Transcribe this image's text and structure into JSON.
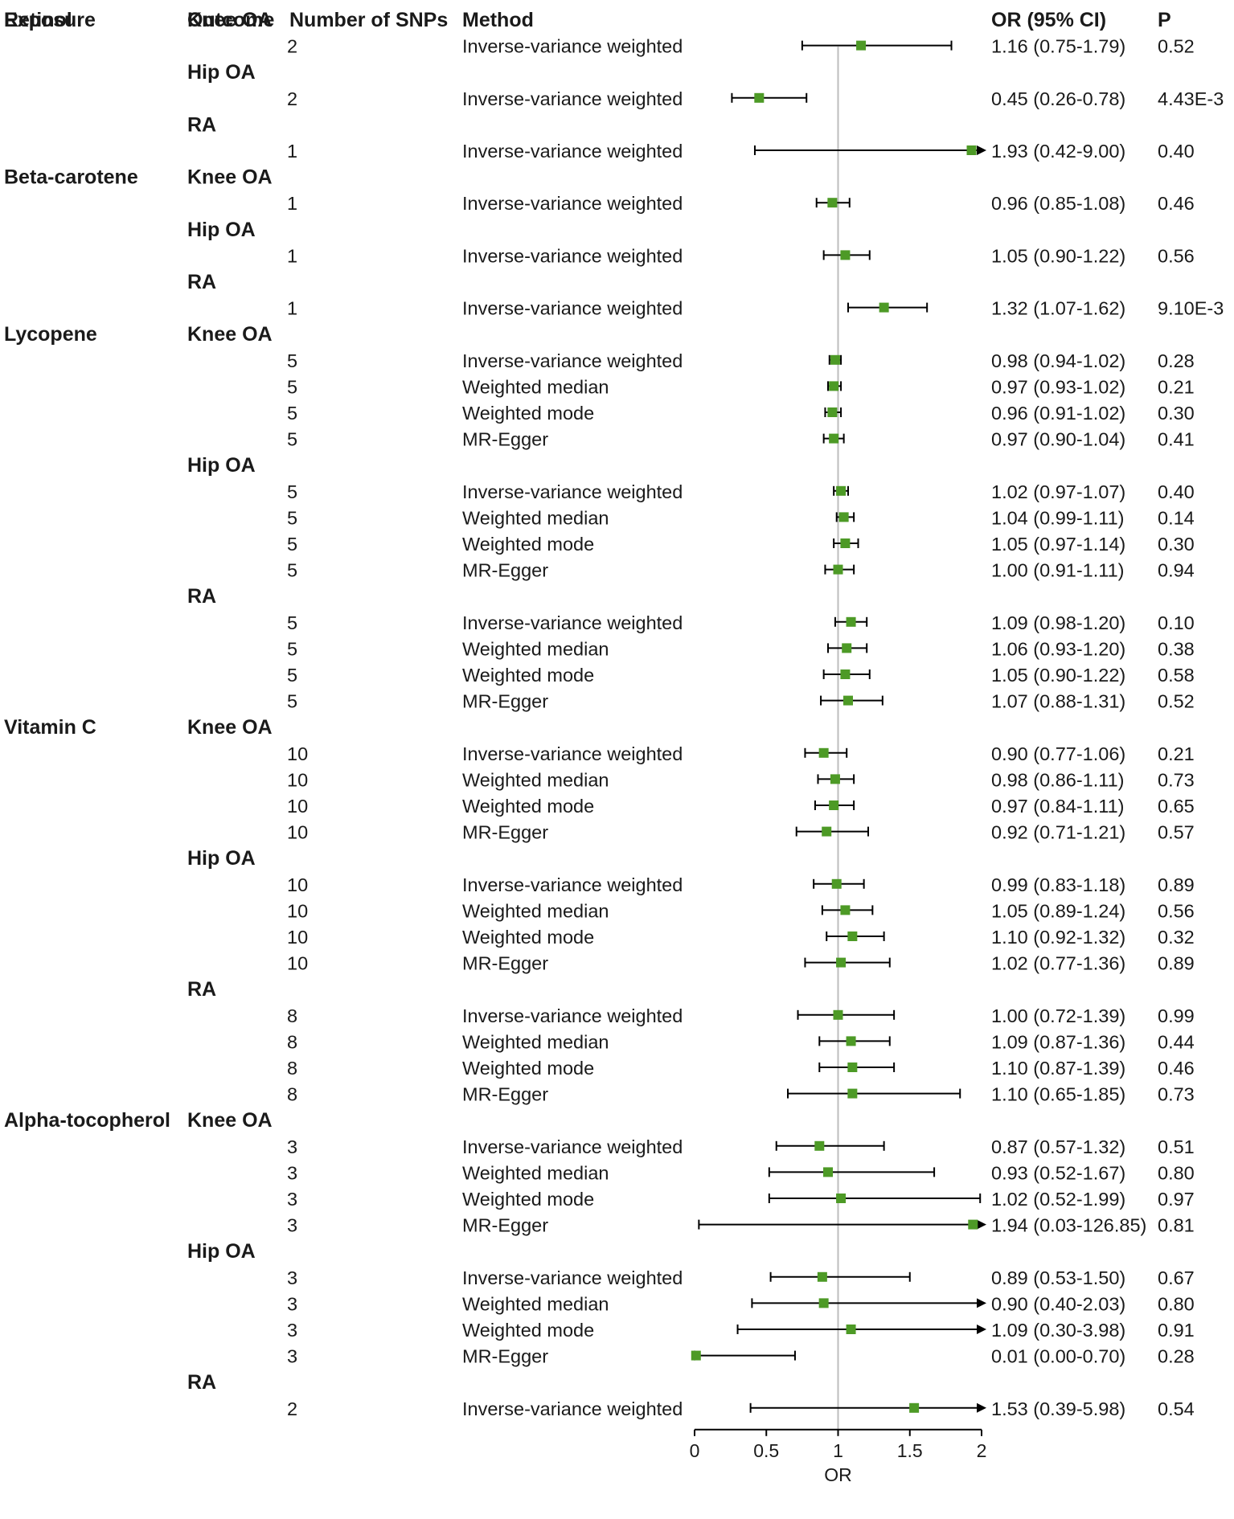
{
  "chart_data": {
    "type": "forest",
    "headers": {
      "exposure": "Exposure",
      "outcome": "Outcome",
      "nsnps": "Number of SNPs",
      "method": "Method",
      "or_ci": "OR (95% CI)",
      "p": "P"
    },
    "xlabel": "OR",
    "xlim": [
      0,
      2
    ],
    "xticks": [
      0,
      0.5,
      1,
      1.5,
      2
    ],
    "xtick_labels": [
      "0",
      "0.5",
      "1",
      "1.5",
      "2"
    ],
    "reference_line": 1,
    "colors": {
      "marker": "#4d9a26",
      "reference": "#bdbdbd",
      "line": "#000000"
    },
    "exposures": [
      {
        "name": "Retinol",
        "outcomes": [
          {
            "name": "Knee OA",
            "rows": [
              {
                "nsnps": "2",
                "method": "Inverse-variance weighted",
                "or": 1.16,
                "lo": 0.75,
                "hi": 1.79,
                "or_text": "1.16 (0.75-1.79)",
                "p": "0.52"
              }
            ]
          },
          {
            "name": "Hip OA",
            "rows": [
              {
                "nsnps": "2",
                "method": "Inverse-variance weighted",
                "or": 0.45,
                "lo": 0.26,
                "hi": 0.78,
                "or_text": "0.45 (0.26-0.78)",
                "p": "4.43E-3"
              }
            ]
          },
          {
            "name": "RA",
            "rows": [
              {
                "nsnps": "1",
                "method": "Inverse-variance weighted",
                "or": 1.93,
                "lo": 0.42,
                "hi": 9.0,
                "or_text": "1.93 (0.42-9.00)",
                "p": "0.40"
              }
            ]
          }
        ]
      },
      {
        "name": "Beta-carotene",
        "outcomes": [
          {
            "name": "Knee OA",
            "rows": [
              {
                "nsnps": "1",
                "method": "Inverse-variance weighted",
                "or": 0.96,
                "lo": 0.85,
                "hi": 1.08,
                "or_text": "0.96 (0.85-1.08)",
                "p": "0.46"
              }
            ]
          },
          {
            "name": "Hip OA",
            "rows": [
              {
                "nsnps": "1",
                "method": "Inverse-variance weighted",
                "or": 1.05,
                "lo": 0.9,
                "hi": 1.22,
                "or_text": "1.05 (0.90-1.22)",
                "p": "0.56"
              }
            ]
          },
          {
            "name": "RA",
            "rows": [
              {
                "nsnps": "1",
                "method": "Inverse-variance weighted",
                "or": 1.32,
                "lo": 1.07,
                "hi": 1.62,
                "or_text": "1.32 (1.07-1.62)",
                "p": "9.10E-3"
              }
            ]
          }
        ]
      },
      {
        "name": "Lycopene",
        "outcomes": [
          {
            "name": "Knee OA",
            "rows": [
              {
                "nsnps": "5",
                "method": "Inverse-variance weighted",
                "or": 0.98,
                "lo": 0.94,
                "hi": 1.02,
                "or_text": "0.98 (0.94-1.02)",
                "p": "0.28"
              },
              {
                "nsnps": "5",
                "method": "Weighted median",
                "or": 0.97,
                "lo": 0.93,
                "hi": 1.02,
                "or_text": "0.97 (0.93-1.02)",
                "p": "0.21"
              },
              {
                "nsnps": "5",
                "method": "Weighted mode",
                "or": 0.96,
                "lo": 0.91,
                "hi": 1.02,
                "or_text": "0.96 (0.91-1.02)",
                "p": "0.30"
              },
              {
                "nsnps": "5",
                "method": "MR-Egger",
                "or": 0.97,
                "lo": 0.9,
                "hi": 1.04,
                "or_text": "0.97 (0.90-1.04)",
                "p": "0.41"
              }
            ]
          },
          {
            "name": "Hip OA",
            "rows": [
              {
                "nsnps": "5",
                "method": "Inverse-variance weighted",
                "or": 1.02,
                "lo": 0.97,
                "hi": 1.07,
                "or_text": "1.02 (0.97-1.07)",
                "p": "0.40"
              },
              {
                "nsnps": "5",
                "method": "Weighted median",
                "or": 1.04,
                "lo": 0.99,
                "hi": 1.11,
                "or_text": "1.04 (0.99-1.11)",
                "p": "0.14"
              },
              {
                "nsnps": "5",
                "method": "Weighted mode",
                "or": 1.05,
                "lo": 0.97,
                "hi": 1.14,
                "or_text": "1.05 (0.97-1.14)",
                "p": "0.30"
              },
              {
                "nsnps": "5",
                "method": "MR-Egger",
                "or": 1.0,
                "lo": 0.91,
                "hi": 1.11,
                "or_text": "1.00 (0.91-1.11)",
                "p": "0.94"
              }
            ]
          },
          {
            "name": "RA",
            "rows": [
              {
                "nsnps": "5",
                "method": "Inverse-variance weighted",
                "or": 1.09,
                "lo": 0.98,
                "hi": 1.2,
                "or_text": "1.09 (0.98-1.20)",
                "p": "0.10"
              },
              {
                "nsnps": "5",
                "method": "Weighted median",
                "or": 1.06,
                "lo": 0.93,
                "hi": 1.2,
                "or_text": "1.06 (0.93-1.20)",
                "p": "0.38"
              },
              {
                "nsnps": "5",
                "method": "Weighted mode",
                "or": 1.05,
                "lo": 0.9,
                "hi": 1.22,
                "or_text": "1.05 (0.90-1.22)",
                "p": "0.58"
              },
              {
                "nsnps": "5",
                "method": "MR-Egger",
                "or": 1.07,
                "lo": 0.88,
                "hi": 1.31,
                "or_text": "1.07 (0.88-1.31)",
                "p": "0.52"
              }
            ]
          }
        ]
      },
      {
        "name": "Vitamin C",
        "outcomes": [
          {
            "name": "Knee OA",
            "rows": [
              {
                "nsnps": "10",
                "method": "Inverse-variance weighted",
                "or": 0.9,
                "lo": 0.77,
                "hi": 1.06,
                "or_text": "0.90 (0.77-1.06)",
                "p": "0.21"
              },
              {
                "nsnps": "10",
                "method": "Weighted median",
                "or": 0.98,
                "lo": 0.86,
                "hi": 1.11,
                "or_text": "0.98 (0.86-1.11)",
                "p": "0.73"
              },
              {
                "nsnps": "10",
                "method": "Weighted mode",
                "or": 0.97,
                "lo": 0.84,
                "hi": 1.11,
                "or_text": "0.97 (0.84-1.11)",
                "p": "0.65"
              },
              {
                "nsnps": "10",
                "method": "MR-Egger",
                "or": 0.92,
                "lo": 0.71,
                "hi": 1.21,
                "or_text": "0.92 (0.71-1.21)",
                "p": "0.57"
              }
            ]
          },
          {
            "name": "Hip OA",
            "rows": [
              {
                "nsnps": "10",
                "method": "Inverse-variance weighted",
                "or": 0.99,
                "lo": 0.83,
                "hi": 1.18,
                "or_text": "0.99 (0.83-1.18)",
                "p": "0.89"
              },
              {
                "nsnps": "10",
                "method": "Weighted median",
                "or": 1.05,
                "lo": 0.89,
                "hi": 1.24,
                "or_text": "1.05 (0.89-1.24)",
                "p": "0.56"
              },
              {
                "nsnps": "10",
                "method": "Weighted mode",
                "or": 1.1,
                "lo": 0.92,
                "hi": 1.32,
                "or_text": "1.10 (0.92-1.32)",
                "p": "0.32"
              },
              {
                "nsnps": "10",
                "method": "MR-Egger",
                "or": 1.02,
                "lo": 0.77,
                "hi": 1.36,
                "or_text": "1.02 (0.77-1.36)",
                "p": "0.89"
              }
            ]
          },
          {
            "name": "RA",
            "rows": [
              {
                "nsnps": "8",
                "method": "Inverse-variance weighted",
                "or": 1.0,
                "lo": 0.72,
                "hi": 1.39,
                "or_text": "1.00 (0.72-1.39)",
                "p": "0.99"
              },
              {
                "nsnps": "8",
                "method": "Weighted median",
                "or": 1.09,
                "lo": 0.87,
                "hi": 1.36,
                "or_text": "1.09 (0.87-1.36)",
                "p": "0.44"
              },
              {
                "nsnps": "8",
                "method": "Weighted mode",
                "or": 1.1,
                "lo": 0.87,
                "hi": 1.39,
                "or_text": "1.10 (0.87-1.39)",
                "p": "0.46"
              },
              {
                "nsnps": "8",
                "method": "MR-Egger",
                "or": 1.1,
                "lo": 0.65,
                "hi": 1.85,
                "or_text": "1.10 (0.65-1.85)",
                "p": "0.73"
              }
            ]
          }
        ]
      },
      {
        "name": "Alpha-tocopherol",
        "outcomes": [
          {
            "name": "Knee OA",
            "rows": [
              {
                "nsnps": "3",
                "method": "Inverse-variance weighted",
                "or": 0.87,
                "lo": 0.57,
                "hi": 1.32,
                "or_text": "0.87 (0.57-1.32)",
                "p": "0.51"
              },
              {
                "nsnps": "3",
                "method": "Weighted median",
                "or": 0.93,
                "lo": 0.52,
                "hi": 1.67,
                "or_text": "0.93 (0.52-1.67)",
                "p": "0.80"
              },
              {
                "nsnps": "3",
                "method": "Weighted mode",
                "or": 1.02,
                "lo": 0.52,
                "hi": 1.99,
                "or_text": "1.02 (0.52-1.99)",
                "p": "0.97"
              },
              {
                "nsnps": "3",
                "method": "MR-Egger",
                "or": 1.94,
                "lo": 0.03,
                "hi": 126.85,
                "or_text": "1.94 (0.03-126.85)",
                "p": "0.81"
              }
            ]
          },
          {
            "name": "Hip OA",
            "rows": [
              {
                "nsnps": "3",
                "method": "Inverse-variance weighted",
                "or": 0.89,
                "lo": 0.53,
                "hi": 1.5,
                "or_text": "0.89 (0.53-1.50)",
                "p": "0.67"
              },
              {
                "nsnps": "3",
                "method": "Weighted median",
                "or": 0.9,
                "lo": 0.4,
                "hi": 2.03,
                "or_text": "0.90 (0.40-2.03)",
                "p": "0.80"
              },
              {
                "nsnps": "3",
                "method": "Weighted mode",
                "or": 1.09,
                "lo": 0.3,
                "hi": 3.98,
                "or_text": "1.09 (0.30-3.98)",
                "p": "0.91"
              },
              {
                "nsnps": "3",
                "method": "MR-Egger",
                "or": 0.01,
                "lo": 0.0,
                "hi": 0.7,
                "or_text": "0.01 (0.00-0.70)",
                "p": "0.28"
              }
            ]
          },
          {
            "name": "RA",
            "rows": [
              {
                "nsnps": "2",
                "method": "Inverse-variance weighted",
                "or": 1.53,
                "lo": 0.39,
                "hi": 5.98,
                "or_text": "1.53 (0.39-5.98)",
                "p": "0.54"
              }
            ]
          }
        ]
      }
    ]
  }
}
